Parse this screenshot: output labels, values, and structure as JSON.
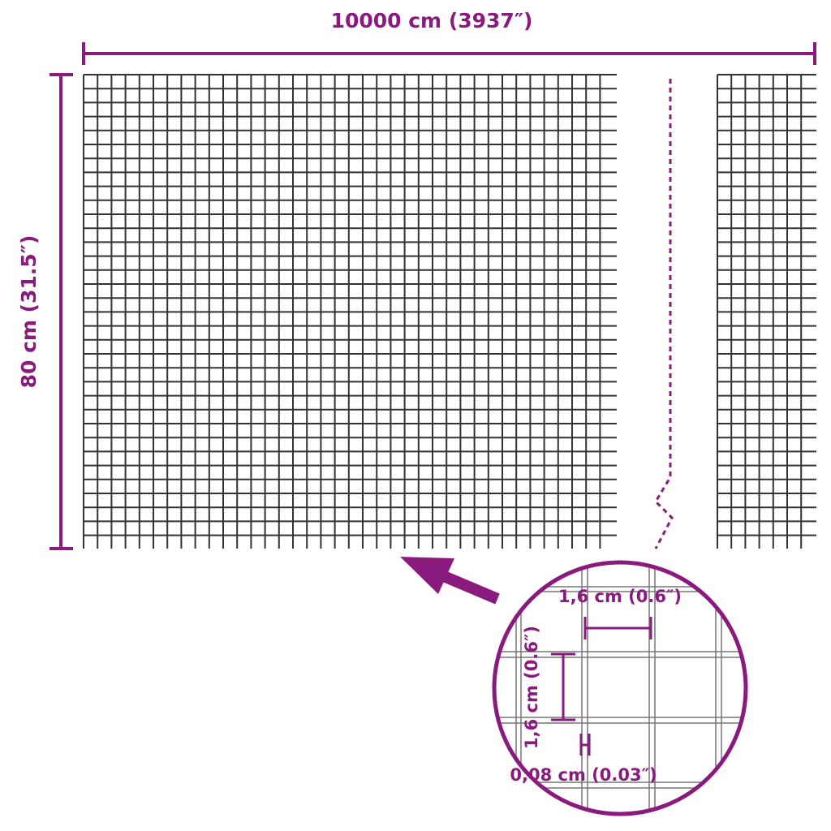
{
  "colors": {
    "accent": "#8a1a7e",
    "mesh": "#333333",
    "detail_mesh": "#777777"
  },
  "dimensions": {
    "width_label": "10000 cm (3937″)",
    "height_label": "80 cm (31.5″)"
  },
  "detail": {
    "mesh_width_label": "1,6 cm (0.6″)",
    "mesh_height_label": "1,6 cm (0.6″)",
    "wire_label": "0,08 cm (0.03″)"
  }
}
